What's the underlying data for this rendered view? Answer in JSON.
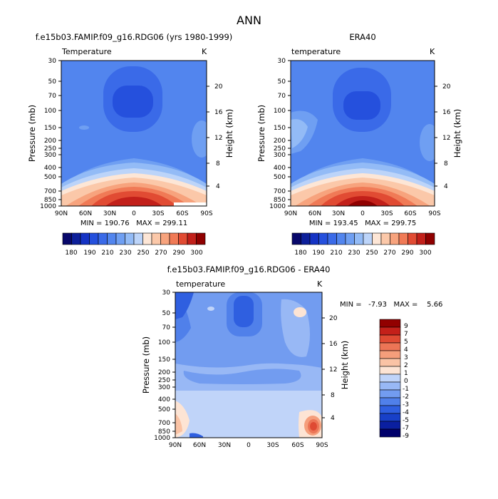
{
  "page_title": "ANN",
  "colors": {
    "temp_scale": [
      "#08086b",
      "#0d1f9a",
      "#1533c4",
      "#2550dd",
      "#3a6ae8",
      "#5285ee",
      "#6f9ff2",
      "#93bbf6",
      "#bcd4f9",
      "#fde6d6",
      "#fbc8a9",
      "#f7a37d",
      "#f07a56",
      "#e14b33",
      "#c2201a",
      "#8f0000"
    ],
    "diff_scale": [
      "#00006b",
      "#0a1fa0",
      "#1840c8",
      "#2f5fe0",
      "#5080ea",
      "#729cf0",
      "#98b8f5",
      "#c0d4f9",
      "#fde4d4",
      "#fac3a5",
      "#f59e7b",
      "#ec7556",
      "#df4a33",
      "#c4201a",
      "#920000"
    ]
  },
  "chart_data": [
    {
      "id": "model",
      "type": "contour",
      "title": "f.e15b03.FAMIP.f09_g16.RDG06 (yrs 1980-1999)",
      "variable_label": "Temperature",
      "units": "K",
      "ylabel": "Pressure (mb)",
      "ylabel_right": "Height (km)",
      "x_ticks": [
        "90N",
        "60N",
        "30N",
        "0",
        "30S",
        "60S",
        "90S"
      ],
      "y_ticks": [
        "30",
        "50",
        "70",
        "100",
        "150",
        "200",
        "250",
        "300",
        "400",
        "500",
        "700",
        "850",
        "1000"
      ],
      "height_ticks": [
        "20",
        "16",
        "12",
        "8",
        "4"
      ],
      "stats": "MIN = 190.76   MAX = 299.11",
      "min": 190.76,
      "max": 299.11,
      "colorbar_labels": [
        "180",
        "190",
        "210",
        "230",
        "250",
        "270",
        "290",
        "300"
      ]
    },
    {
      "id": "obs",
      "type": "contour",
      "title": "ERA40",
      "variable_label": "temperature",
      "units": "K",
      "ylabel": "Pressure (mb)",
      "ylabel_right": "Height (km)",
      "x_ticks": [
        "90N",
        "60N",
        "30N",
        "0",
        "30S",
        "60S",
        "90S"
      ],
      "y_ticks": [
        "30",
        "50",
        "70",
        "100",
        "150",
        "200",
        "250",
        "300",
        "400",
        "500",
        "700",
        "850",
        "1000"
      ],
      "height_ticks": [
        "20",
        "16",
        "12",
        "8",
        "4"
      ],
      "stats": "MIN = 193.45   MAX = 299.75",
      "min": 193.45,
      "max": 299.75,
      "colorbar_labels": [
        "180",
        "190",
        "210",
        "230",
        "250",
        "270",
        "290",
        "300"
      ]
    },
    {
      "id": "diff",
      "type": "contour",
      "title": "f.e15b03.FAMIP.f09_g16.RDG06 - ERA40",
      "variable_label": "temperature",
      "units": "K",
      "ylabel": "Pressure (mb)",
      "ylabel_right": "Height (km)",
      "x_ticks": [
        "90N",
        "60N",
        "30N",
        "0",
        "30S",
        "60S",
        "90S"
      ],
      "y_ticks": [
        "30",
        "50",
        "70",
        "100",
        "150",
        "200",
        "250",
        "300",
        "400",
        "500",
        "700",
        "850",
        "1000"
      ],
      "height_ticks": [
        "20",
        "16",
        "12",
        "8",
        "4"
      ],
      "stats": "MIN =   -7.93   MAX =    5.66",
      "min": -7.93,
      "max": 5.66,
      "colorbar_labels": [
        "9",
        "7",
        "5",
        "4",
        "3",
        "2",
        "1",
        "0",
        "-1",
        "-2",
        "-3",
        "-4",
        "-5",
        "-7",
        "-9"
      ]
    }
  ]
}
